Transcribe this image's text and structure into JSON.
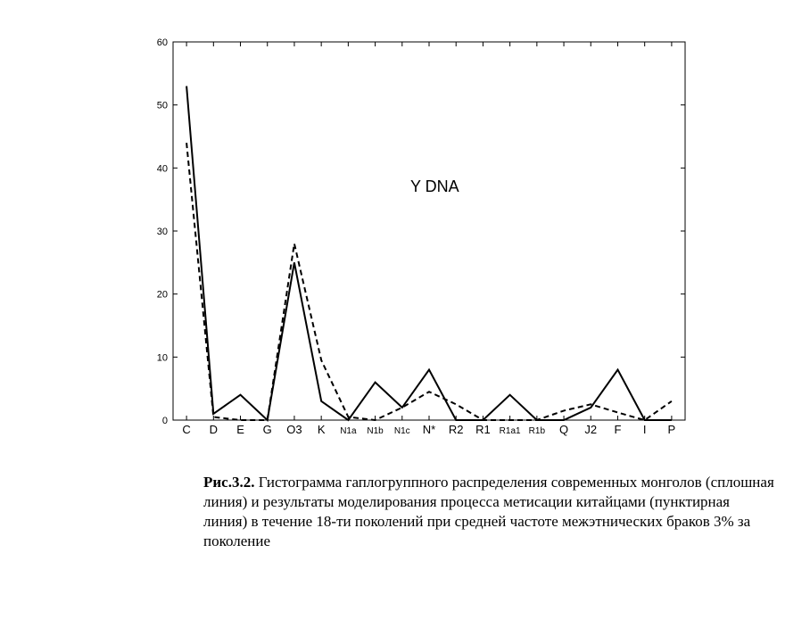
{
  "chart_data": {
    "type": "line",
    "annotation": "Y DNA",
    "categories": [
      "C",
      "D",
      "E",
      "G",
      "O3",
      "K",
      "N1a",
      "N1b",
      "N1c",
      "N*",
      "R2",
      "R1",
      "R1a1",
      "R1b",
      "Q",
      "J2",
      "F",
      "I",
      "P"
    ],
    "series": [
      {
        "style": "solid",
        "color": "#000000",
        "values": [
          53,
          1,
          4,
          0,
          25,
          3,
          0,
          6,
          2,
          8,
          0,
          0,
          4,
          0,
          0,
          2,
          8,
          0,
          0
        ]
      },
      {
        "style": "dashed",
        "color": "#000000",
        "values": [
          44,
          0.5,
          0,
          0,
          28,
          9.5,
          0.5,
          0,
          2,
          4.5,
          2.5,
          0,
          0,
          0,
          1.5,
          2.5,
          1.2,
          0,
          3
        ]
      }
    ],
    "ylim": [
      0,
      60
    ],
    "yticks": [
      0,
      10,
      20,
      30,
      40,
      50,
      60
    ],
    "grid": false
  },
  "caption": {
    "label": "Рис.3.2.",
    "text": " Гистограмма гаплогруппного распределения современных монголов (сплошная линия) и результаты моделирования процесса метисации китайцами (пунктирная линия) в течение 18-ти поколений при средней частоте межэтнических браков 3% за поколение"
  }
}
